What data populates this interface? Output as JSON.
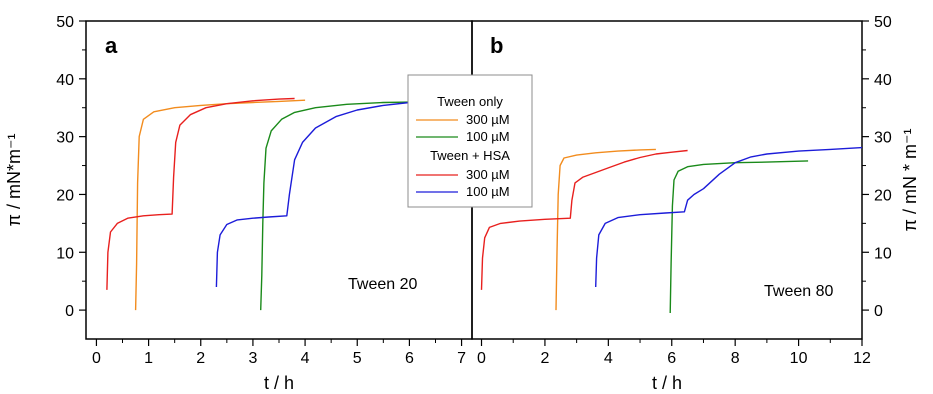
{
  "chart_data": [
    {
      "panel": "a",
      "type": "line",
      "annotation": "Tween 20",
      "xlabel": "t / h",
      "ylabel": "π / mN*m⁻¹",
      "xlim": [
        -0.2,
        7.2
      ],
      "ylim": [
        -5,
        50
      ],
      "xticks": [
        0,
        1,
        2,
        3,
        4,
        5,
        6,
        7
      ],
      "yticks": [
        0,
        10,
        20,
        30,
        40,
        50
      ],
      "series": [
        {
          "group": "Tween only",
          "name": "300 µM",
          "color": "#f28c1e",
          "points": [
            [
              0.75,
              0
            ],
            [
              0.77,
              8
            ],
            [
              0.79,
              22
            ],
            [
              0.82,
              30
            ],
            [
              0.9,
              33
            ],
            [
              1.1,
              34.3
            ],
            [
              1.5,
              35
            ],
            [
              2,
              35.4
            ],
            [
              2.5,
              35.7
            ],
            [
              3,
              35.9
            ],
            [
              3.5,
              36.1
            ],
            [
              4,
              36.3
            ]
          ]
        },
        {
          "group": "Tween only",
          "name": "100 µM",
          "color": "#1a8a1a",
          "points": [
            [
              3.15,
              0
            ],
            [
              3.17,
              6
            ],
            [
              3.19,
              15
            ],
            [
              3.21,
              22
            ],
            [
              3.25,
              28
            ],
            [
              3.35,
              31
            ],
            [
              3.55,
              33
            ],
            [
              3.8,
              34.2
            ],
            [
              4.2,
              35
            ],
            [
              4.8,
              35.6
            ],
            [
              5.5,
              35.9
            ],
            [
              6.2,
              36
            ],
            [
              7,
              36.1
            ],
            [
              7.2,
              36.1
            ]
          ]
        },
        {
          "group": "Tween + HSA",
          "name": "300 µM",
          "color": "#e8201e",
          "points": [
            [
              0.2,
              3.5
            ],
            [
              0.22,
              10
            ],
            [
              0.27,
              13.5
            ],
            [
              0.4,
              15
            ],
            [
              0.6,
              15.9
            ],
            [
              0.9,
              16.3
            ],
            [
              1.2,
              16.5
            ],
            [
              1.45,
              16.6
            ],
            [
              1.48,
              23
            ],
            [
              1.52,
              29
            ],
            [
              1.6,
              32
            ],
            [
              1.8,
              33.8
            ],
            [
              2.1,
              35
            ],
            [
              2.5,
              35.7
            ],
            [
              3,
              36.2
            ],
            [
              3.5,
              36.5
            ],
            [
              3.8,
              36.6
            ]
          ]
        },
        {
          "group": "Tween + HSA",
          "name": "100 µM",
          "color": "#1c1cd9",
          "points": [
            [
              2.3,
              4
            ],
            [
              2.32,
              10
            ],
            [
              2.37,
              13
            ],
            [
              2.5,
              14.8
            ],
            [
              2.7,
              15.6
            ],
            [
              3,
              15.9
            ],
            [
              3.3,
              16.1
            ],
            [
              3.65,
              16.3
            ],
            [
              3.7,
              20
            ],
            [
              3.8,
              26
            ],
            [
              3.95,
              29
            ],
            [
              4.2,
              31.5
            ],
            [
              4.6,
              33.5
            ],
            [
              5,
              34.6
            ],
            [
              5.5,
              35.4
            ],
            [
              6,
              35.9
            ],
            [
              6.5,
              36.1
            ],
            [
              7,
              36.2
            ],
            [
              7.2,
              36.2
            ]
          ]
        }
      ]
    },
    {
      "panel": "b",
      "type": "line",
      "annotation": "Tween 80",
      "xlabel": "t / h",
      "ylabel": "π / mN * m⁻¹",
      "xlim": [
        -0.3,
        12
      ],
      "ylim": [
        -5,
        50
      ],
      "xticks": [
        0,
        2,
        4,
        6,
        8,
        10,
        12
      ],
      "yticks": [
        0,
        10,
        20,
        30,
        40,
        50
      ],
      "series": [
        {
          "group": "Tween only",
          "name": "300 µM",
          "color": "#f28c1e",
          "points": [
            [
              2.35,
              0
            ],
            [
              2.38,
              10
            ],
            [
              2.42,
              20
            ],
            [
              2.48,
              25
            ],
            [
              2.6,
              26.3
            ],
            [
              3,
              26.8
            ],
            [
              3.6,
              27.2
            ],
            [
              4.3,
              27.5
            ],
            [
              5,
              27.7
            ],
            [
              5.5,
              27.8
            ]
          ]
        },
        {
          "group": "Tween only",
          "name": "100 µM",
          "color": "#1a8a1a",
          "points": [
            [
              5.95,
              -0.5
            ],
            [
              5.98,
              8
            ],
            [
              6.02,
              18
            ],
            [
              6.07,
              22.5
            ],
            [
              6.2,
              24
            ],
            [
              6.5,
              24.8
            ],
            [
              7,
              25.2
            ],
            [
              8,
              25.5
            ],
            [
              9,
              25.6
            ],
            [
              10.3,
              25.8
            ]
          ]
        },
        {
          "group": "Tween + HSA",
          "name": "300 µM",
          "color": "#e8201e",
          "points": [
            [
              0,
              3.5
            ],
            [
              0.03,
              9
            ],
            [
              0.1,
              12.5
            ],
            [
              0.25,
              14.3
            ],
            [
              0.6,
              15
            ],
            [
              1.2,
              15.4
            ],
            [
              2,
              15.7
            ],
            [
              2.8,
              15.9
            ],
            [
              2.85,
              19
            ],
            [
              2.95,
              22
            ],
            [
              3.2,
              23
            ],
            [
              3.6,
              23.8
            ],
            [
              4,
              24.6
            ],
            [
              4.5,
              25.6
            ],
            [
              5,
              26.4
            ],
            [
              5.5,
              27
            ],
            [
              6,
              27.3
            ],
            [
              6.5,
              27.6
            ]
          ]
        },
        {
          "group": "Tween + HSA",
          "name": "100 µM",
          "color": "#1c1cd9",
          "points": [
            [
              3.6,
              4
            ],
            [
              3.63,
              9
            ],
            [
              3.7,
              13
            ],
            [
              3.9,
              15
            ],
            [
              4.3,
              16
            ],
            [
              5,
              16.5
            ],
            [
              5.8,
              16.8
            ],
            [
              6.4,
              17
            ],
            [
              6.5,
              19
            ],
            [
              6.7,
              20
            ],
            [
              7,
              21
            ],
            [
              7.5,
              23.5
            ],
            [
              8,
              25.5
            ],
            [
              8.5,
              26.5
            ],
            [
              9,
              27
            ],
            [
              10,
              27.5
            ],
            [
              11,
              27.8
            ],
            [
              12,
              28.1
            ]
          ]
        }
      ]
    }
  ],
  "legend": {
    "groups": [
      {
        "title": "Tween only",
        "entries": [
          {
            "label": "300 µM",
            "color": "#f28c1e"
          },
          {
            "label": "100 µM",
            "color": "#1a8a1a"
          }
        ]
      },
      {
        "title": "Tween + HSA",
        "entries": [
          {
            "label": "300 µM",
            "color": "#e8201e"
          },
          {
            "label": "100 µM",
            "color": "#1c1cd9"
          }
        ]
      }
    ]
  }
}
